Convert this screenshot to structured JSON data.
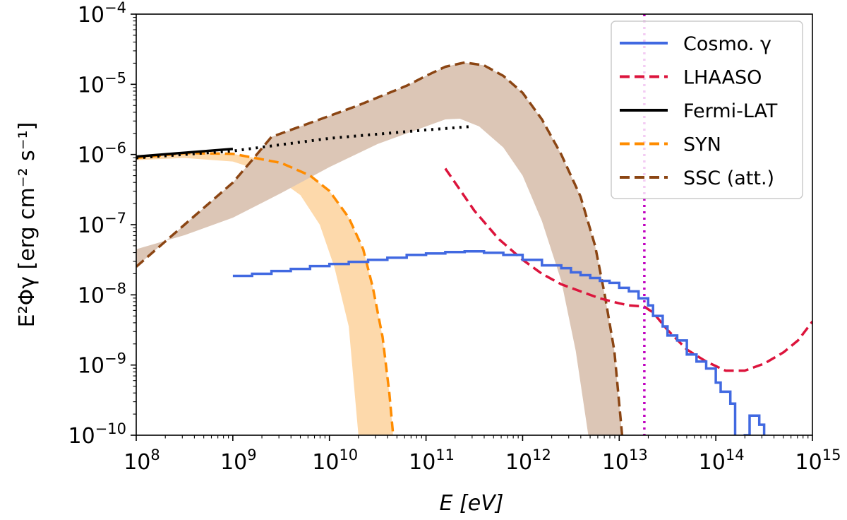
{
  "chart_data": {
    "type": "line",
    "title": "",
    "xlabel": "E [eV]",
    "ylabel": "E²Φγ [erg cm⁻² s⁻¹]",
    "xscale": "log",
    "yscale": "log",
    "xlim_log10": [
      8,
      15
    ],
    "ylim_log10": [
      -10,
      -4
    ],
    "x_ticks_log10": [
      8,
      9,
      10,
      11,
      12,
      13,
      14,
      15
    ],
    "y_ticks_log10": [
      -10,
      -9,
      -8,
      -7,
      -6,
      -5,
      -4
    ],
    "tick_base": "10",
    "legend_position": "top-right",
    "colors": {
      "cosmo": "#4169e1",
      "lhaaso": "#dc143c",
      "fermi": "#000000",
      "syn": "#ff8c00",
      "syn_band": "#fdd9ab",
      "ssc": "#8b4513",
      "ssc_band": "#dcc6b6",
      "vline": "#c000c0"
    },
    "legend": [
      {
        "key": "cosmo",
        "label": "Cosmo. γ",
        "style": "solid"
      },
      {
        "key": "lhaaso",
        "label": "LHAASO",
        "style": "dashed"
      },
      {
        "key": "fermi",
        "label": "Fermi-LAT",
        "style": "solid"
      },
      {
        "key": "syn",
        "label": "SYN",
        "style": "dashed"
      },
      {
        "key": "ssc",
        "label": "SSC (att.)",
        "style": "dashed"
      }
    ],
    "series": [
      {
        "name": "Cosmo. γ",
        "key": "cosmo",
        "style": "steps",
        "points_log10": [
          [
            9.0,
            -7.73
          ],
          [
            9.2,
            -7.7
          ],
          [
            9.4,
            -7.66
          ],
          [
            9.6,
            -7.63
          ],
          [
            9.8,
            -7.59
          ],
          [
            10.0,
            -7.56
          ],
          [
            10.2,
            -7.53
          ],
          [
            10.4,
            -7.5
          ],
          [
            10.6,
            -7.47
          ],
          [
            10.8,
            -7.43
          ],
          [
            11.0,
            -7.41
          ],
          [
            11.2,
            -7.39
          ],
          [
            11.4,
            -7.38
          ],
          [
            11.6,
            -7.4
          ],
          [
            11.8,
            -7.43
          ],
          [
            12.0,
            -7.5
          ],
          [
            12.2,
            -7.58
          ],
          [
            12.4,
            -7.62
          ],
          [
            12.5,
            -7.68
          ],
          [
            12.6,
            -7.72
          ],
          [
            12.7,
            -7.76
          ],
          [
            12.8,
            -7.8
          ],
          [
            12.9,
            -7.83
          ],
          [
            13.0,
            -7.9
          ],
          [
            13.1,
            -7.95
          ],
          [
            13.2,
            -8.05
          ],
          [
            13.3,
            -8.15
          ],
          [
            13.35,
            -8.3
          ],
          [
            13.45,
            -8.45
          ],
          [
            13.5,
            -8.58
          ],
          [
            13.6,
            -8.65
          ],
          [
            13.7,
            -8.85
          ],
          [
            13.8,
            -8.95
          ],
          [
            13.9,
            -9.05
          ],
          [
            14.0,
            -9.25
          ],
          [
            14.05,
            -9.38
          ],
          [
            14.15,
            -9.55
          ],
          [
            14.2,
            -10.05
          ],
          [
            14.3,
            -10.0
          ],
          [
            14.35,
            -9.72
          ],
          [
            14.45,
            -9.85
          ],
          [
            14.5,
            -10.0
          ]
        ]
      },
      {
        "name": "LHAASO",
        "key": "lhaaso",
        "style": "dashed",
        "points_log10": [
          [
            11.2,
            -6.2
          ],
          [
            11.5,
            -6.8
          ],
          [
            11.75,
            -7.2
          ],
          [
            12.0,
            -7.5
          ],
          [
            12.2,
            -7.7
          ],
          [
            12.4,
            -7.85
          ],
          [
            12.6,
            -7.95
          ],
          [
            12.8,
            -8.05
          ],
          [
            13.0,
            -8.12
          ],
          [
            13.1,
            -8.15
          ],
          [
            13.2,
            -8.16
          ],
          [
            13.25,
            -8.16
          ],
          [
            13.35,
            -8.25
          ],
          [
            13.5,
            -8.5
          ],
          [
            13.7,
            -8.78
          ],
          [
            13.9,
            -8.95
          ],
          [
            14.1,
            -9.08
          ],
          [
            14.3,
            -9.08
          ],
          [
            14.5,
            -8.98
          ],
          [
            14.7,
            -8.82
          ],
          [
            14.85,
            -8.65
          ],
          [
            15.0,
            -8.38
          ]
        ]
      },
      {
        "name": "Fermi-LAT",
        "key": "fermi",
        "style": "solid",
        "points_log10": [
          [
            8.0,
            -6.03
          ],
          [
            9.0,
            -5.92
          ]
        ]
      },
      {
        "name": "Fermi-LAT extrapolation",
        "key": "fermi",
        "style": "dotted",
        "points_log10": [
          [
            8.0,
            -6.05
          ],
          [
            9.0,
            -5.95
          ],
          [
            10.0,
            -5.77
          ],
          [
            11.0,
            -5.65
          ],
          [
            11.48,
            -5.6
          ]
        ]
      },
      {
        "name": "SYN",
        "key": "syn",
        "style": "dashed",
        "points_log10": [
          [
            8.0,
            -6.05
          ],
          [
            8.5,
            -5.98
          ],
          [
            9.0,
            -5.99
          ],
          [
            9.5,
            -6.12
          ],
          [
            9.8,
            -6.3
          ],
          [
            10.0,
            -6.52
          ],
          [
            10.2,
            -6.9
          ],
          [
            10.35,
            -7.35
          ],
          [
            10.45,
            -7.9
          ],
          [
            10.55,
            -8.6
          ],
          [
            10.62,
            -9.4
          ],
          [
            10.66,
            -10.0
          ]
        ]
      },
      {
        "name": "SYN band lower",
        "key": "syn_band",
        "style": "band",
        "points_log10": [
          [
            8.0,
            -6.08
          ],
          [
            8.5,
            -6.05
          ],
          [
            9.0,
            -6.1
          ],
          [
            9.4,
            -6.28
          ],
          [
            9.7,
            -6.58
          ],
          [
            9.9,
            -7.0
          ],
          [
            10.05,
            -7.6
          ],
          [
            10.2,
            -8.45
          ],
          [
            10.3,
            -10.0
          ]
        ]
      },
      {
        "name": "SSC (att.)",
        "key": "ssc",
        "style": "dashed",
        "points_log10": [
          [
            8.0,
            -7.6
          ],
          [
            8.5,
            -7.0
          ],
          [
            9.0,
            -6.4
          ],
          [
            9.2,
            -6.08
          ],
          [
            9.4,
            -5.75
          ],
          [
            9.8,
            -5.55
          ],
          [
            10.3,
            -5.3
          ],
          [
            10.8,
            -5.02
          ],
          [
            11.0,
            -4.88
          ],
          [
            11.2,
            -4.75
          ],
          [
            11.4,
            -4.69
          ],
          [
            11.6,
            -4.73
          ],
          [
            11.8,
            -4.88
          ],
          [
            12.0,
            -5.12
          ],
          [
            12.2,
            -5.5
          ],
          [
            12.4,
            -6.0
          ],
          [
            12.6,
            -6.6
          ],
          [
            12.75,
            -7.3
          ],
          [
            12.85,
            -8.0
          ],
          [
            12.95,
            -8.8
          ],
          [
            13.03,
            -10.0
          ]
        ]
      },
      {
        "name": "SSC band lower",
        "key": "ssc_band",
        "style": "band",
        "points_log10": [
          [
            8.0,
            -7.35
          ],
          [
            8.5,
            -7.15
          ],
          [
            9.0,
            -6.9
          ],
          [
            9.5,
            -6.55
          ],
          [
            10.0,
            -6.18
          ],
          [
            10.5,
            -5.85
          ],
          [
            11.0,
            -5.6
          ],
          [
            11.2,
            -5.5
          ],
          [
            11.35,
            -5.49
          ],
          [
            11.55,
            -5.6
          ],
          [
            11.8,
            -5.9
          ],
          [
            12.0,
            -6.3
          ],
          [
            12.2,
            -6.95
          ],
          [
            12.4,
            -7.8
          ],
          [
            12.55,
            -8.8
          ],
          [
            12.68,
            -10.0
          ]
        ]
      }
    ],
    "vertical_line": {
      "key": "vline",
      "x_log10": 13.26,
      "style": "dotted"
    }
  }
}
